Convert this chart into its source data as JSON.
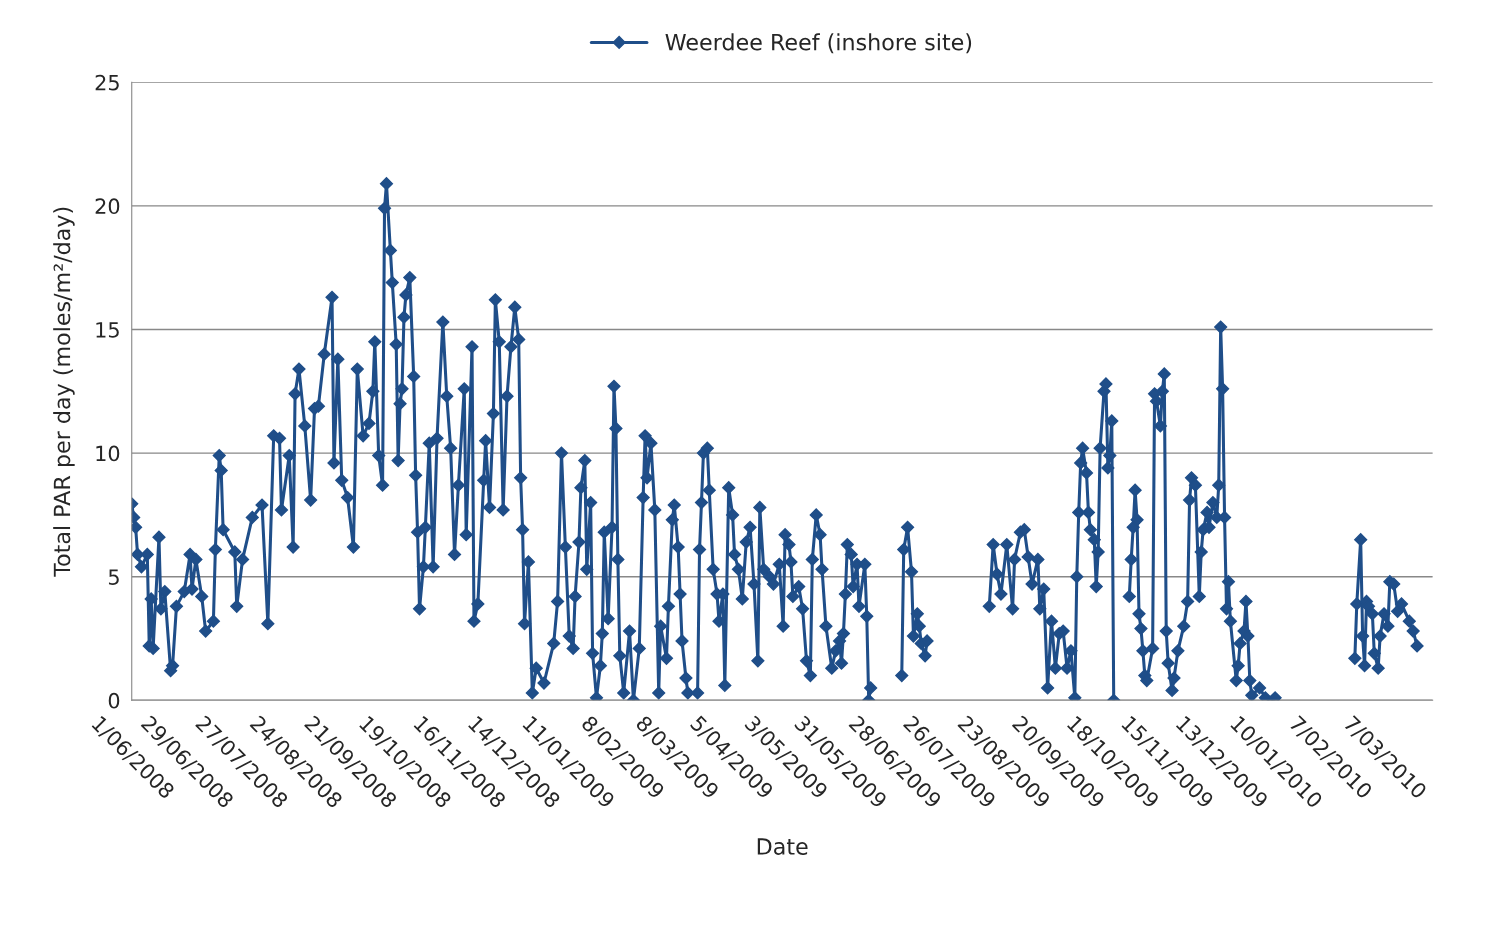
{
  "chart_data": {
    "type": "line",
    "xlabel": "Date",
    "ylabel": "Total PAR per day (moles/m²/day)",
    "legend": "top",
    "grid": "y",
    "marker": "diamond",
    "line_style": "solid",
    "ylim": [
      0,
      25
    ],
    "yticks": [
      0,
      5,
      10,
      15,
      20,
      25
    ],
    "xlim": [
      "2008-06-01",
      "2010-04-01"
    ],
    "xticks": [
      {
        "value": "2008-06-01",
        "label": "1/06/2008"
      },
      {
        "value": "2008-06-29",
        "label": "29/06/2008"
      },
      {
        "value": "2008-07-27",
        "label": "27/07/2008"
      },
      {
        "value": "2008-08-24",
        "label": "24/08/2008"
      },
      {
        "value": "2008-09-21",
        "label": "21/09/2008"
      },
      {
        "value": "2008-10-19",
        "label": "19/10/2008"
      },
      {
        "value": "2008-11-16",
        "label": "16/11/2008"
      },
      {
        "value": "2008-12-14",
        "label": "14/12/2008"
      },
      {
        "value": "2009-01-11",
        "label": "11/01/2009"
      },
      {
        "value": "2009-02-08",
        "label": "8/02/2009"
      },
      {
        "value": "2009-03-08",
        "label": "8/03/2009"
      },
      {
        "value": "2009-04-05",
        "label": "5/04/2009"
      },
      {
        "value": "2009-05-03",
        "label": "3/05/2009"
      },
      {
        "value": "2009-05-31",
        "label": "31/05/2009"
      },
      {
        "value": "2009-06-28",
        "label": "28/06/2009"
      },
      {
        "value": "2009-07-26",
        "label": "26/07/2009"
      },
      {
        "value": "2009-08-23",
        "label": "23/08/2009"
      },
      {
        "value": "2009-09-20",
        "label": "20/09/2009"
      },
      {
        "value": "2009-10-18",
        "label": "18/10/2009"
      },
      {
        "value": "2009-11-15",
        "label": "15/11/2009"
      },
      {
        "value": "2009-12-13",
        "label": "13/12/2009"
      },
      {
        "value": "2010-01-10",
        "label": "10/01/2010"
      },
      {
        "value": "2010-02-07",
        "label": "7/02/2010"
      },
      {
        "value": "2010-03-07",
        "label": "7/03/2010"
      }
    ],
    "series": [
      {
        "name": "Weerdee Reef (inshore site)",
        "color": "#1f4e89",
        "x": [
          "2008-06-01",
          "2008-06-02",
          "2008-06-03",
          "2008-06-04",
          "2008-06-06",
          "2008-06-09",
          "2008-06-10",
          "2008-06-11",
          "2008-06-12",
          "2008-06-15",
          "2008-06-16",
          "2008-06-18",
          "2008-06-21",
          "2008-06-22",
          "2008-06-24",
          "2008-06-28",
          "2008-07-01",
          "2008-07-02",
          "2008-07-04",
          "2008-07-07",
          "2008-07-09",
          "2008-07-13",
          "2008-07-14",
          "2008-07-16",
          "2008-07-17",
          "2008-07-18",
          "2008-07-24",
          "2008-07-25",
          "2008-07-28",
          "2008-08-02",
          "2008-08-07",
          "2008-08-10",
          "2008-08-13",
          "2008-08-16",
          "2008-08-17",
          "2008-08-21",
          "2008-08-23",
          "2008-08-24",
          "2008-08-26",
          "2008-08-29",
          "2008-09-01",
          "2008-09-03",
          "2008-09-05",
          "2008-09-08",
          "2008-09-12",
          "2008-09-13",
          "2008-09-15",
          "2008-09-17",
          "2008-09-20",
          "2008-09-23",
          "2008-09-25",
          "2008-09-28",
          "2008-10-01",
          "2008-10-03",
          "2008-10-04",
          "2008-10-06",
          "2008-10-08",
          "2008-10-09",
          "2008-10-10",
          "2008-10-12",
          "2008-10-13",
          "2008-10-15",
          "2008-10-16",
          "2008-10-17",
          "2008-10-18",
          "2008-10-19",
          "2008-10-20",
          "2008-10-22",
          "2008-10-24",
          "2008-10-25",
          "2008-10-26",
          "2008-10-27",
          "2008-10-29",
          "2008-10-30",
          "2008-11-01",
          "2008-11-03",
          "2008-11-05",
          "2008-11-08",
          "2008-11-10",
          "2008-11-12",
          "2008-11-14",
          "2008-11-16",
          "2008-11-19",
          "2008-11-20",
          "2008-11-23",
          "2008-11-24",
          "2008-11-26",
          "2008-11-29",
          "2008-11-30",
          "2008-12-02",
          "2008-12-04",
          "2008-12-05",
          "2008-12-07",
          "2008-12-09",
          "2008-12-11",
          "2008-12-13",
          "2008-12-15",
          "2008-12-17",
          "2008-12-18",
          "2008-12-19",
          "2008-12-20",
          "2008-12-22",
          "2008-12-24",
          "2008-12-26",
          "2008-12-30",
          "2009-01-04",
          "2009-01-06",
          "2009-01-08",
          "2009-01-10",
          "2009-01-12",
          "2009-01-14",
          "2009-01-15",
          "2009-01-17",
          "2009-01-18",
          "2009-01-20",
          "2009-01-21",
          "2009-01-23",
          "2009-01-24",
          "2009-01-26",
          "2009-01-28",
          "2009-01-29",
          "2009-01-30",
          "2009-02-01",
          "2009-02-03",
          "2009-02-04",
          "2009-02-05",
          "2009-02-06",
          "2009-02-07",
          "2009-02-09",
          "2009-02-12",
          "2009-02-14",
          "2009-02-17",
          "2009-02-19",
          "2009-02-20",
          "2009-02-21",
          "2009-02-23",
          "2009-02-25",
          "2009-02-27",
          "2009-02-28",
          "2009-03-03",
          "2009-03-04",
          "2009-03-06",
          "2009-03-07",
          "2009-03-09",
          "2009-03-10",
          "2009-03-11",
          "2009-03-13",
          "2009-03-14",
          "2009-03-19",
          "2009-03-20",
          "2009-03-21",
          "2009-03-22",
          "2009-03-24",
          "2009-03-25",
          "2009-03-27",
          "2009-03-29",
          "2009-03-30",
          "2009-04-01",
          "2009-04-02",
          "2009-04-04",
          "2009-04-06",
          "2009-04-07",
          "2009-04-09",
          "2009-04-11",
          "2009-04-13",
          "2009-04-15",
          "2009-04-17",
          "2009-04-19",
          "2009-04-20",
          "2009-04-22",
          "2009-04-25",
          "2009-04-27",
          "2009-04-30",
          "2009-05-02",
          "2009-05-03",
          "2009-05-05",
          "2009-05-06",
          "2009-05-07",
          "2009-05-10",
          "2009-05-12",
          "2009-05-14",
          "2009-05-16",
          "2009-05-17",
          "2009-05-19",
          "2009-05-21",
          "2009-05-22",
          "2009-05-24",
          "2009-05-27",
          "2009-05-29",
          "2009-05-31",
          "2009-06-01",
          "2009-06-02",
          "2009-06-03",
          "2009-06-04",
          "2009-06-06",
          "2009-06-07",
          "2009-06-09",
          "2009-06-10",
          "2009-06-13",
          "2009-06-14",
          "2009-06-15",
          "2009-06-16",
          "2009-06-24",
          "2009-07-02",
          "2009-07-03",
          "2009-07-05",
          "2009-07-07",
          "2009-07-08",
          "2009-07-10",
          "2009-07-11",
          "2009-07-12",
          "2009-07-14",
          "2009-07-15",
          "2009-07-31",
          "2009-08-16",
          "2009-08-18",
          "2009-08-20",
          "2009-08-22",
          "2009-08-25",
          "2009-08-28",
          "2009-08-29",
          "2009-09-01",
          "2009-09-03",
          "2009-09-05",
          "2009-09-07",
          "2009-09-10",
          "2009-09-11",
          "2009-09-13",
          "2009-09-15",
          "2009-09-17",
          "2009-09-19",
          "2009-09-21",
          "2009-09-23",
          "2009-09-25",
          "2009-09-27",
          "2009-09-29",
          "2009-09-30",
          "2009-10-01",
          "2009-10-02",
          "2009-10-03",
          "2009-10-05",
          "2009-10-06",
          "2009-10-07",
          "2009-10-09",
          "2009-10-10",
          "2009-10-11",
          "2009-10-12",
          "2009-10-14",
          "2009-10-15",
          "2009-10-16",
          "2009-10-17",
          "2009-10-18",
          "2009-10-19",
          "2009-10-23",
          "2009-10-27",
          "2009-10-28",
          "2009-10-29",
          "2009-10-30",
          "2009-10-31",
          "2009-11-01",
          "2009-11-02",
          "2009-11-03",
          "2009-11-04",
          "2009-11-05",
          "2009-11-08",
          "2009-11-09",
          "2009-11-10",
          "2009-11-12",
          "2009-11-13",
          "2009-11-14",
          "2009-11-15",
          "2009-11-16",
          "2009-11-18",
          "2009-11-19",
          "2009-11-21",
          "2009-11-24",
          "2009-11-26",
          "2009-11-27",
          "2009-11-28",
          "2009-11-30",
          "2009-12-02",
          "2009-12-03",
          "2009-12-04",
          "2009-12-06",
          "2009-12-07",
          "2009-12-09",
          "2009-12-11",
          "2009-12-12",
          "2009-12-13",
          "2009-12-14",
          "2009-12-15",
          "2009-12-16",
          "2009-12-17",
          "2009-12-18",
          "2009-12-21",
          "2009-12-22",
          "2009-12-23",
          "2009-12-25",
          "2009-12-26",
          "2009-12-27",
          "2009-12-28",
          "2009-12-29",
          "2010-01-02",
          "2010-01-05",
          "2010-01-09",
          "2010-01-10",
          "2010-02-01",
          "2010-02-20",
          "2010-02-21",
          "2010-02-23",
          "2010-02-24",
          "2010-02-25",
          "2010-02-26",
          "2010-02-27",
          "2010-03-01",
          "2010-03-02",
          "2010-03-04",
          "2010-03-05",
          "2010-03-07",
          "2010-03-09",
          "2010-03-10",
          "2010-03-12",
          "2010-03-14",
          "2010-03-16",
          "2010-03-20",
          "2010-03-22",
          "2010-03-24"
        ],
        "values": [
          7.95,
          7.4,
          7.0,
          5.9,
          5.4,
          5.9,
          2.2,
          4.1,
          2.1,
          6.6,
          3.7,
          4.4,
          1.2,
          1.4,
          3.8,
          4.4,
          5.9,
          4.5,
          5.7,
          4.2,
          2.8,
          3.2,
          6.1,
          9.9,
          9.3,
          6.9,
          6.0,
          3.8,
          5.7,
          7.4,
          7.9,
          3.1,
          10.7,
          10.6,
          7.7,
          9.9,
          6.2,
          12.4,
          13.4,
          11.1,
          8.1,
          11.8,
          11.9,
          14.0,
          16.3,
          9.6,
          13.8,
          8.9,
          8.2,
          6.2,
          13.4,
          10.7,
          11.2,
          12.5,
          14.5,
          9.9,
          8.7,
          19.9,
          20.9,
          18.2,
          16.9,
          14.4,
          9.7,
          12.0,
          12.6,
          15.5,
          16.4,
          17.1,
          13.1,
          9.1,
          6.8,
          3.7,
          5.4,
          7.0,
          10.4,
          5.4,
          10.6,
          15.3,
          12.3,
          10.2,
          5.9,
          8.7,
          12.6,
          6.7,
          14.3,
          3.2,
          3.9,
          8.9,
          10.5,
          7.8,
          11.6,
          16.2,
          14.5,
          7.7,
          12.3,
          14.3,
          15.9,
          14.6,
          9.0,
          6.9,
          3.1,
          5.6,
          0.3,
          1.3,
          0.7,
          2.3,
          4.0,
          10.0,
          6.2,
          2.6,
          2.1,
          4.2,
          6.4,
          8.6,
          9.7,
          5.3,
          8.0,
          1.9,
          0.1,
          1.4,
          2.7,
          6.8,
          3.3,
          7.0,
          12.7,
          11.0,
          5.7,
          1.8,
          0.3,
          2.8,
          0.0,
          2.1,
          8.2,
          10.7,
          9.0,
          10.4,
          7.7,
          0.3,
          3.0,
          1.7,
          3.8,
          7.3,
          7.9,
          6.2,
          4.3,
          2.4,
          0.9,
          0.3,
          0.3,
          6.1,
          8.0,
          10.0,
          10.2,
          8.5,
          5.3,
          4.3,
          3.2,
          4.3,
          0.6,
          8.6,
          7.5,
          5.9,
          5.3,
          4.1,
          6.4,
          7.0,
          4.7,
          1.6,
          7.8,
          5.3,
          5.0,
          4.7,
          5.5,
          3.0,
          6.7,
          6.3,
          5.6,
          4.2,
          4.6,
          3.7,
          1.6,
          1.0,
          5.7,
          7.5,
          6.7,
          5.3,
          3.0,
          1.3,
          2.0,
          2.4,
          1.5,
          2.7,
          4.3,
          6.3,
          5.9,
          4.6,
          5.5,
          3.8,
          5.5,
          3.4,
          0.0,
          0.5,
          null,
          1.0,
          6.1,
          7.0,
          5.2,
          2.6,
          3.5,
          3.0,
          2.3,
          1.8,
          2.4,
          null,
          3.8,
          6.3,
          5.1,
          4.3,
          6.3,
          3.7,
          5.7,
          6.8,
          6.9,
          5.8,
          4.7,
          5.7,
          3.7,
          4.5,
          0.5,
          3.2,
          1.3,
          2.7,
          2.8,
          1.3,
          2.0,
          0.1,
          5.0,
          7.6,
          9.6,
          10.2,
          9.2,
          7.6,
          6.9,
          6.5,
          4.6,
          6.0,
          10.2,
          12.5,
          12.8,
          9.4,
          9.9,
          11.3,
          0.0,
          null,
          4.2,
          5.7,
          7.0,
          8.5,
          7.3,
          3.5,
          2.9,
          2.0,
          1.0,
          0.8,
          2.1,
          12.4,
          12.1,
          11.1,
          12.5,
          13.2,
          2.8,
          1.5,
          0.4,
          0.9,
          2.0,
          3.0,
          4.0,
          8.1,
          9.0,
          8.7,
          4.2,
          6.0,
          6.9,
          7.6,
          7.0,
          8.0,
          7.4,
          8.7,
          15.1,
          12.6,
          7.4,
          3.7,
          4.8,
          3.2,
          0.8,
          1.4,
          2.3,
          2.8,
          4.0,
          2.6,
          0.8,
          0.2,
          0.5,
          0.1,
          0.0,
          0.1,
          null,
          1.7,
          3.9,
          6.5,
          2.6,
          1.4,
          4.0,
          3.8,
          3.5,
          1.9,
          1.3,
          2.6,
          3.5,
          3.0,
          4.8,
          4.7,
          3.6,
          3.9,
          3.2,
          2.8,
          2.2
        ]
      }
    ]
  }
}
